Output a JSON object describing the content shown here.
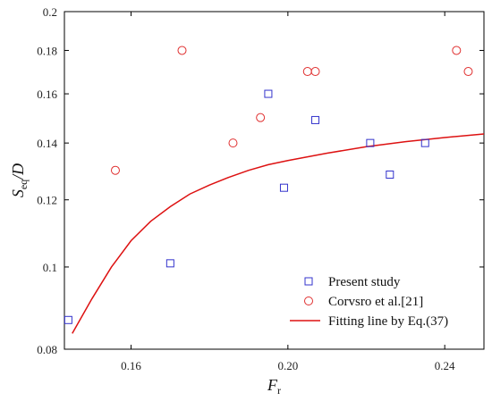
{
  "chart_data": {
    "type": "scatter",
    "xlabel": {
      "main": "F",
      "sub": "r"
    },
    "ylabel": {
      "main": "S",
      "sub": "eq",
      "tail": "/D"
    },
    "xlim": [
      0.143,
      0.25
    ],
    "ylim": [
      0.08,
      0.2
    ],
    "yscale": "log",
    "x_ticks": [
      0.16,
      0.2,
      0.24
    ],
    "x_tick_labels": [
      "0.16",
      "0.20",
      "0.24"
    ],
    "y_ticks": [
      0.08,
      0.1,
      0.12,
      0.14,
      0.16,
      0.18,
      0.2
    ],
    "y_tick_labels": [
      "0.08",
      "0.1",
      "0.12",
      "0.14",
      "0.16",
      "0.18",
      "0.2"
    ],
    "grid": false,
    "legend_position": "bottom-right",
    "series": [
      {
        "name": "Present study",
        "marker": "square",
        "color": "#3333cc",
        "x": [
          0.144,
          0.17,
          0.195,
          0.199,
          0.207,
          0.221,
          0.226,
          0.235
        ],
        "y": [
          0.0866,
          0.101,
          0.16,
          0.124,
          0.149,
          0.14,
          0.1285,
          0.14
        ]
      },
      {
        "name": "Corvsro et al.[21]",
        "marker": "circle",
        "color": "#e03030",
        "x": [
          0.156,
          0.173,
          0.186,
          0.193,
          0.205,
          0.207,
          0.243,
          0.246
        ],
        "y": [
          0.13,
          0.18,
          0.14,
          0.15,
          0.17,
          0.17,
          0.18,
          0.17
        ]
      },
      {
        "name": "Fitting line by Eq.(37)",
        "marker": "line",
        "color": "#dd1111",
        "x": [
          0.145,
          0.15,
          0.155,
          0.16,
          0.165,
          0.17,
          0.175,
          0.18,
          0.185,
          0.19,
          0.195,
          0.2,
          0.21,
          0.22,
          0.23,
          0.24,
          0.25
        ],
        "y": [
          0.0835,
          0.0917,
          0.1,
          0.1074,
          0.1132,
          0.1178,
          0.1219,
          0.1249,
          0.1276,
          0.13,
          0.132,
          0.1335,
          0.1362,
          0.1386,
          0.1405,
          0.1421,
          0.1435
        ]
      }
    ]
  }
}
